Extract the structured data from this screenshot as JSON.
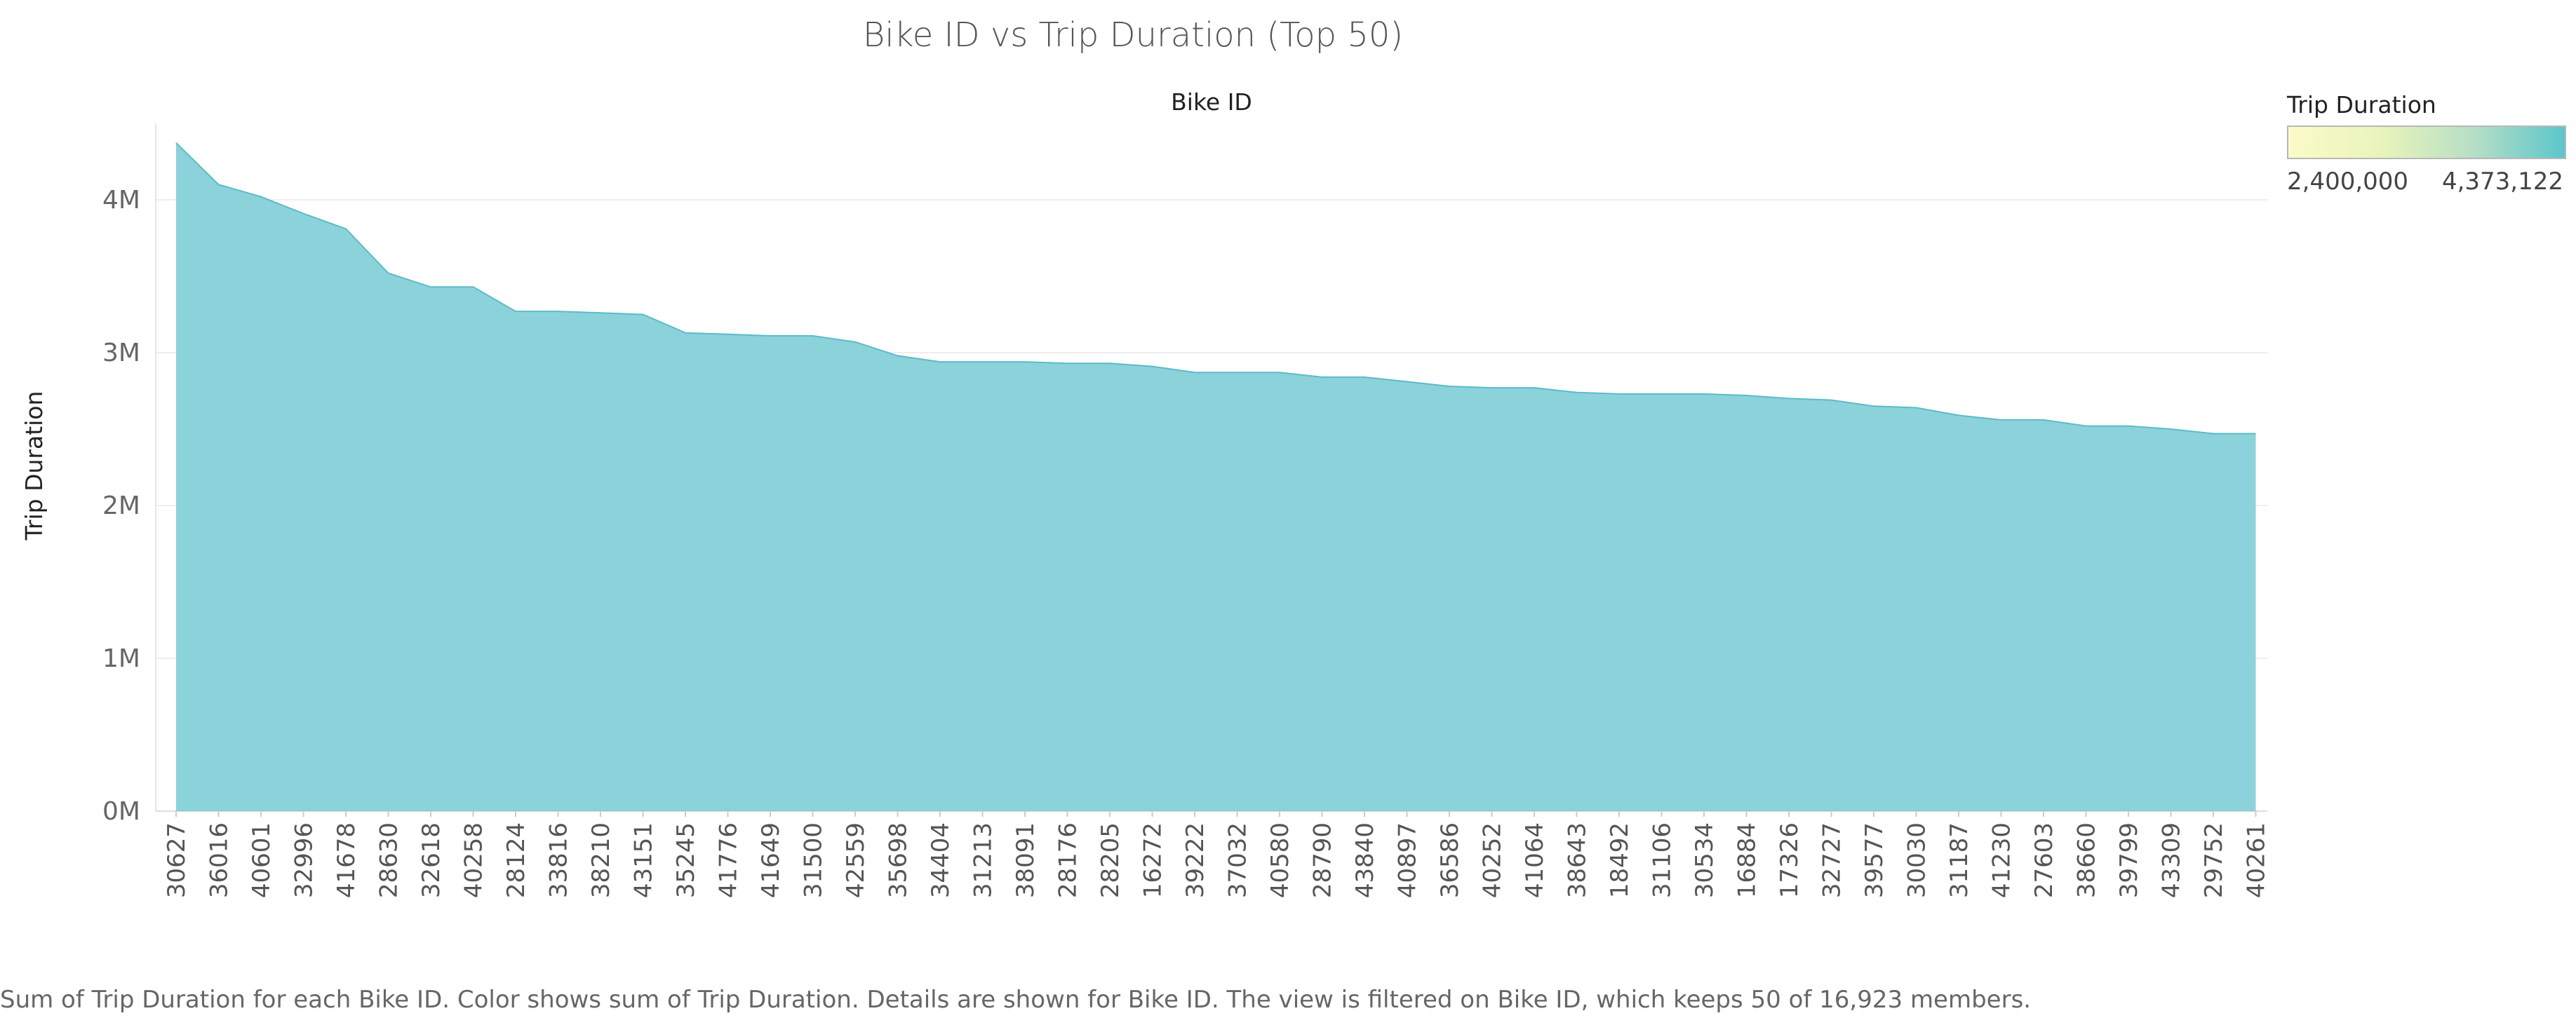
{
  "chart_data": {
    "type": "area",
    "title": "Bike ID vs Trip Duration (Top 50)",
    "top_axis_label": "Bike ID",
    "ylabel": "Trip Duration",
    "y_tick_labels": [
      "0M",
      "1M",
      "2M",
      "3M",
      "4M"
    ],
    "y_ticks": [
      0,
      1000000,
      2000000,
      3000000,
      4000000
    ],
    "ylim": [
      0,
      4500000
    ],
    "grid": true,
    "fill_color": "#7fcdd6",
    "line_color": "#5bbcc7",
    "categories": [
      "30627",
      "36016",
      "40601",
      "32996",
      "41678",
      "28630",
      "32618",
      "40258",
      "28124",
      "33816",
      "38210",
      "43151",
      "35245",
      "41776",
      "41649",
      "31500",
      "42559",
      "35698",
      "34404",
      "31213",
      "38091",
      "28176",
      "28205",
      "16272",
      "39222",
      "37032",
      "40580",
      "28790",
      "43840",
      "40897",
      "36586",
      "40252",
      "41064",
      "38643",
      "18492",
      "31106",
      "30534",
      "16884",
      "17326",
      "32727",
      "39577",
      "30030",
      "31187",
      "41230",
      "27603",
      "38660",
      "39799",
      "43309",
      "29752",
      "40261"
    ],
    "values": [
      4373122,
      4100000,
      4020000,
      3910000,
      3810000,
      3520000,
      3430000,
      3430000,
      3270000,
      3270000,
      3260000,
      3250000,
      3130000,
      3120000,
      3110000,
      3110000,
      3070000,
      2980000,
      2940000,
      2940000,
      2940000,
      2930000,
      2930000,
      2910000,
      2870000,
      2870000,
      2870000,
      2840000,
      2840000,
      2810000,
      2780000,
      2770000,
      2770000,
      2740000,
      2730000,
      2730000,
      2730000,
      2720000,
      2700000,
      2690000,
      2650000,
      2640000,
      2590000,
      2560000,
      2560000,
      2520000,
      2520000,
      2500000,
      2470000,
      2470000
    ],
    "legend": {
      "title": "Trip Duration",
      "min_label": "2,400,000",
      "max_label": "4,373,122",
      "colors": [
        "#fafbc8",
        "#5cc6cc"
      ],
      "position": "top-right"
    }
  },
  "caption": "Sum of Trip Duration for each Bike ID.  Color shows sum of Trip Duration.  Details are shown for Bike ID. The view is filtered on Bike ID, which keeps 50 of 16,923 members."
}
